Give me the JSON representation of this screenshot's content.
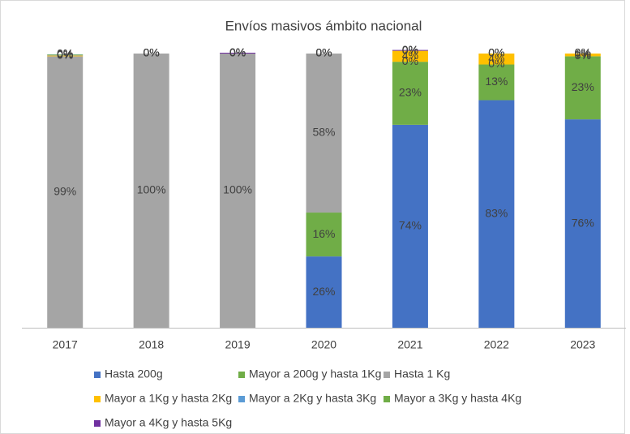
{
  "chart_data": {
    "type": "stacked_bar",
    "title": "Envíos masivos ámbito nacional",
    "categories": [
      "2017",
      "2018",
      "2019",
      "2020",
      "2021",
      "2022",
      "2023"
    ],
    "ylim": [
      0,
      100
    ],
    "legend": "bottom",
    "series": [
      {
        "name": "Hasta 200g",
        "color": "#4472c4",
        "values": [
          null,
          null,
          null,
          26,
          74,
          83,
          76
        ],
        "value_labels": [
          null,
          null,
          null,
          "26%",
          "74%",
          "83%",
          "76%"
        ]
      },
      {
        "name": "Mayor a 200g y hasta 1Kg",
        "color": "#70ad47",
        "values": [
          null,
          null,
          null,
          16,
          23,
          13,
          23
        ],
        "value_labels": [
          null,
          null,
          null,
          "16%",
          "23%",
          "13%",
          "23%"
        ]
      },
      {
        "name": "Hasta 1 Kg",
        "color": "#a5a5a5",
        "values": [
          99,
          100,
          100,
          58,
          0,
          0,
          0
        ],
        "value_labels": [
          "99%",
          "100%",
          "100%",
          "58%",
          "0%",
          "0%",
          "0%"
        ]
      },
      {
        "name": "Mayor a 1Kg y hasta 2Kg",
        "color": "#ffc000",
        "values": [
          0.3,
          0,
          0,
          0,
          4,
          4,
          1
        ],
        "value_labels": [
          "0%",
          "0%",
          "0%",
          "0%",
          "4%",
          "4%",
          "1%"
        ]
      },
      {
        "name": "Mayor a 2Kg y hasta 3Kg",
        "color": "#5b9bd5",
        "values": [
          0.2,
          0,
          0,
          0,
          0,
          0,
          0
        ],
        "value_labels": [
          "0%",
          "0%",
          "0%",
          "0%",
          "0%",
          "0%",
          "0%"
        ]
      },
      {
        "name": "Mayor a 3Kg y hasta 4Kg",
        "color": "#70ad47",
        "values": [
          0.2,
          0,
          0,
          0,
          0,
          0,
          0
        ],
        "value_labels": [
          "0%",
          "0%",
          "0%",
          "0%",
          "0%",
          "0%",
          "0%"
        ]
      },
      {
        "name": "Mayor a 4Kg y hasta 5Kg",
        "color": "#7030a0",
        "values": [
          0,
          0,
          0.3,
          0,
          0.3,
          0,
          0
        ],
        "value_labels": [
          "0%",
          "0%",
          "0%",
          "0%",
          "0%",
          "0%",
          "0%"
        ]
      }
    ]
  }
}
